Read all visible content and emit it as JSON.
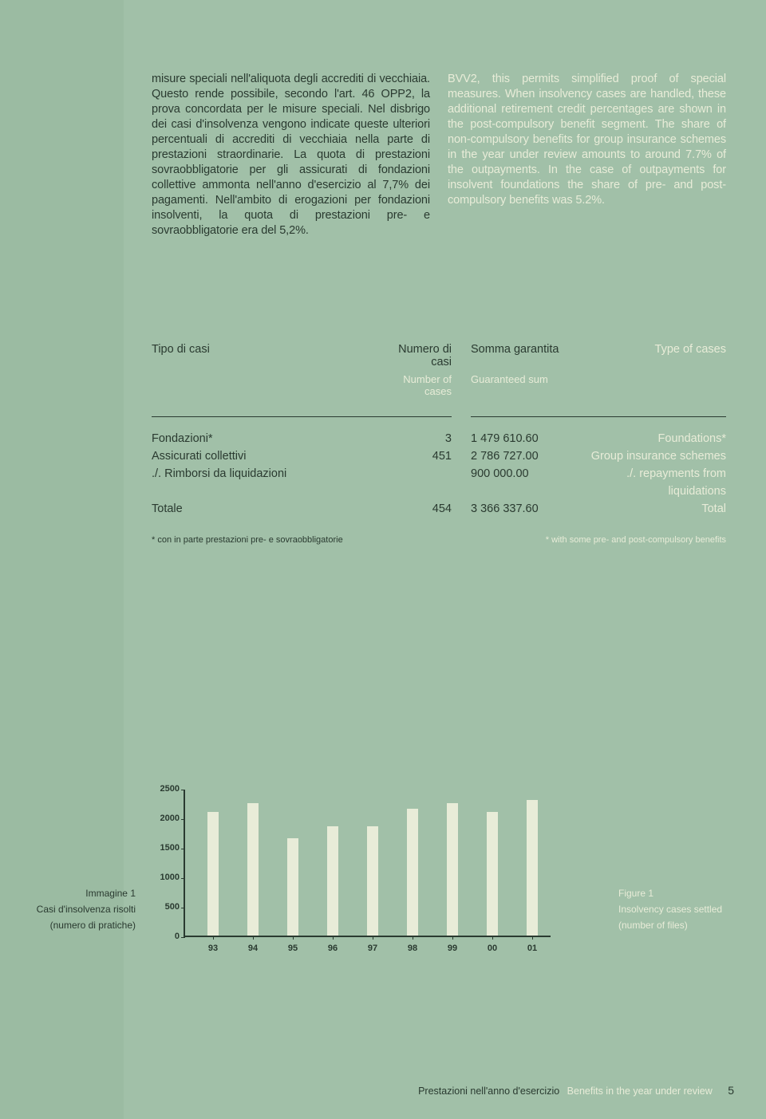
{
  "text": {
    "col_it": "misure speciali nell'aliquota degli accrediti di vecchiaia. Questo rende possibile, secondo l'art. 46 OPP2, la prova concordata per le misure speciali. Nel disbrigo dei casi d'insolvenza vengono indicate queste ulteriori percentuali di accrediti di vecchiaia nella parte di prestazioni straordinarie. La quota di prestazioni sovraobbligatorie per gli assicurati di fondazioni collettive ammonta nell'anno d'esercizio al 7,7% dei pagamenti. Nell'ambito di erogazioni per fondazioni insolventi, la quota di prestazioni pre- e sovraobbligatorie era del 5,2%.",
    "col_en": "BVV2, this permits simplified proof of special measures. When insolvency cases are handled, these additional retirement credit percentages are shown in the post-compulsory benefit segment. The share of non-compulsory benefits for group insurance schemes in the year under review amounts to around 7.7% of the outpayments. In the case of outpayments for insolvent foundations the share of pre- and post-compulsory benefits was 5.2%."
  },
  "table": {
    "h_tipo": "Tipo di casi",
    "h_num": "Numero di casi",
    "h_num_en": "Number of cases",
    "h_somma": "Somma garantita",
    "h_somma_en": "Guaranteed sum",
    "h_type": "Type of cases",
    "rows": [
      {
        "it": "Fondazioni*",
        "n": "3",
        "s": "1 479 610.60",
        "en": "Foundations*"
      },
      {
        "it": "Assicurati collettivi",
        "n": "451",
        "s": "2 786 727.00",
        "en": "Group insurance schemes"
      },
      {
        "it": "./. Rimborsi da liquidazioni",
        "n": "",
        "s": "900 000.00",
        "en": "./. repayments from liquidations"
      },
      {
        "it": "Totale",
        "n": "454",
        "s": "3 366 337.60",
        "en": "Total"
      }
    ],
    "fn_it": "* con in parte prestazioni pre- e sovraobbligatorie",
    "fn_en": "* with some pre- and post-compulsory benefits"
  },
  "chart": {
    "ymax": 2500,
    "ystep": 500,
    "yticks": [
      "0",
      "500",
      "1000",
      "1500",
      "2000",
      "2500"
    ],
    "categories": [
      "93",
      "94",
      "95",
      "96",
      "97",
      "98",
      "99",
      "00",
      "01"
    ],
    "values": [
      2100,
      2250,
      1650,
      1850,
      1850,
      2150,
      2250,
      2100,
      2300
    ],
    "bar_color": "#e8ecd8",
    "axis_color": "#2a3a30",
    "tick_fontsize": 11
  },
  "captions": {
    "left1": "Immagine 1",
    "left2": "Casi d'insolvenza risolti",
    "left3": "(numero di pratiche)",
    "right1": "Figure 1",
    "right2": "Insolvency cases settled",
    "right3": "(number of files)"
  },
  "footer": {
    "it": "Prestazioni nell'anno d'esercizio",
    "en": "Benefits in the year under review",
    "page": "5"
  }
}
